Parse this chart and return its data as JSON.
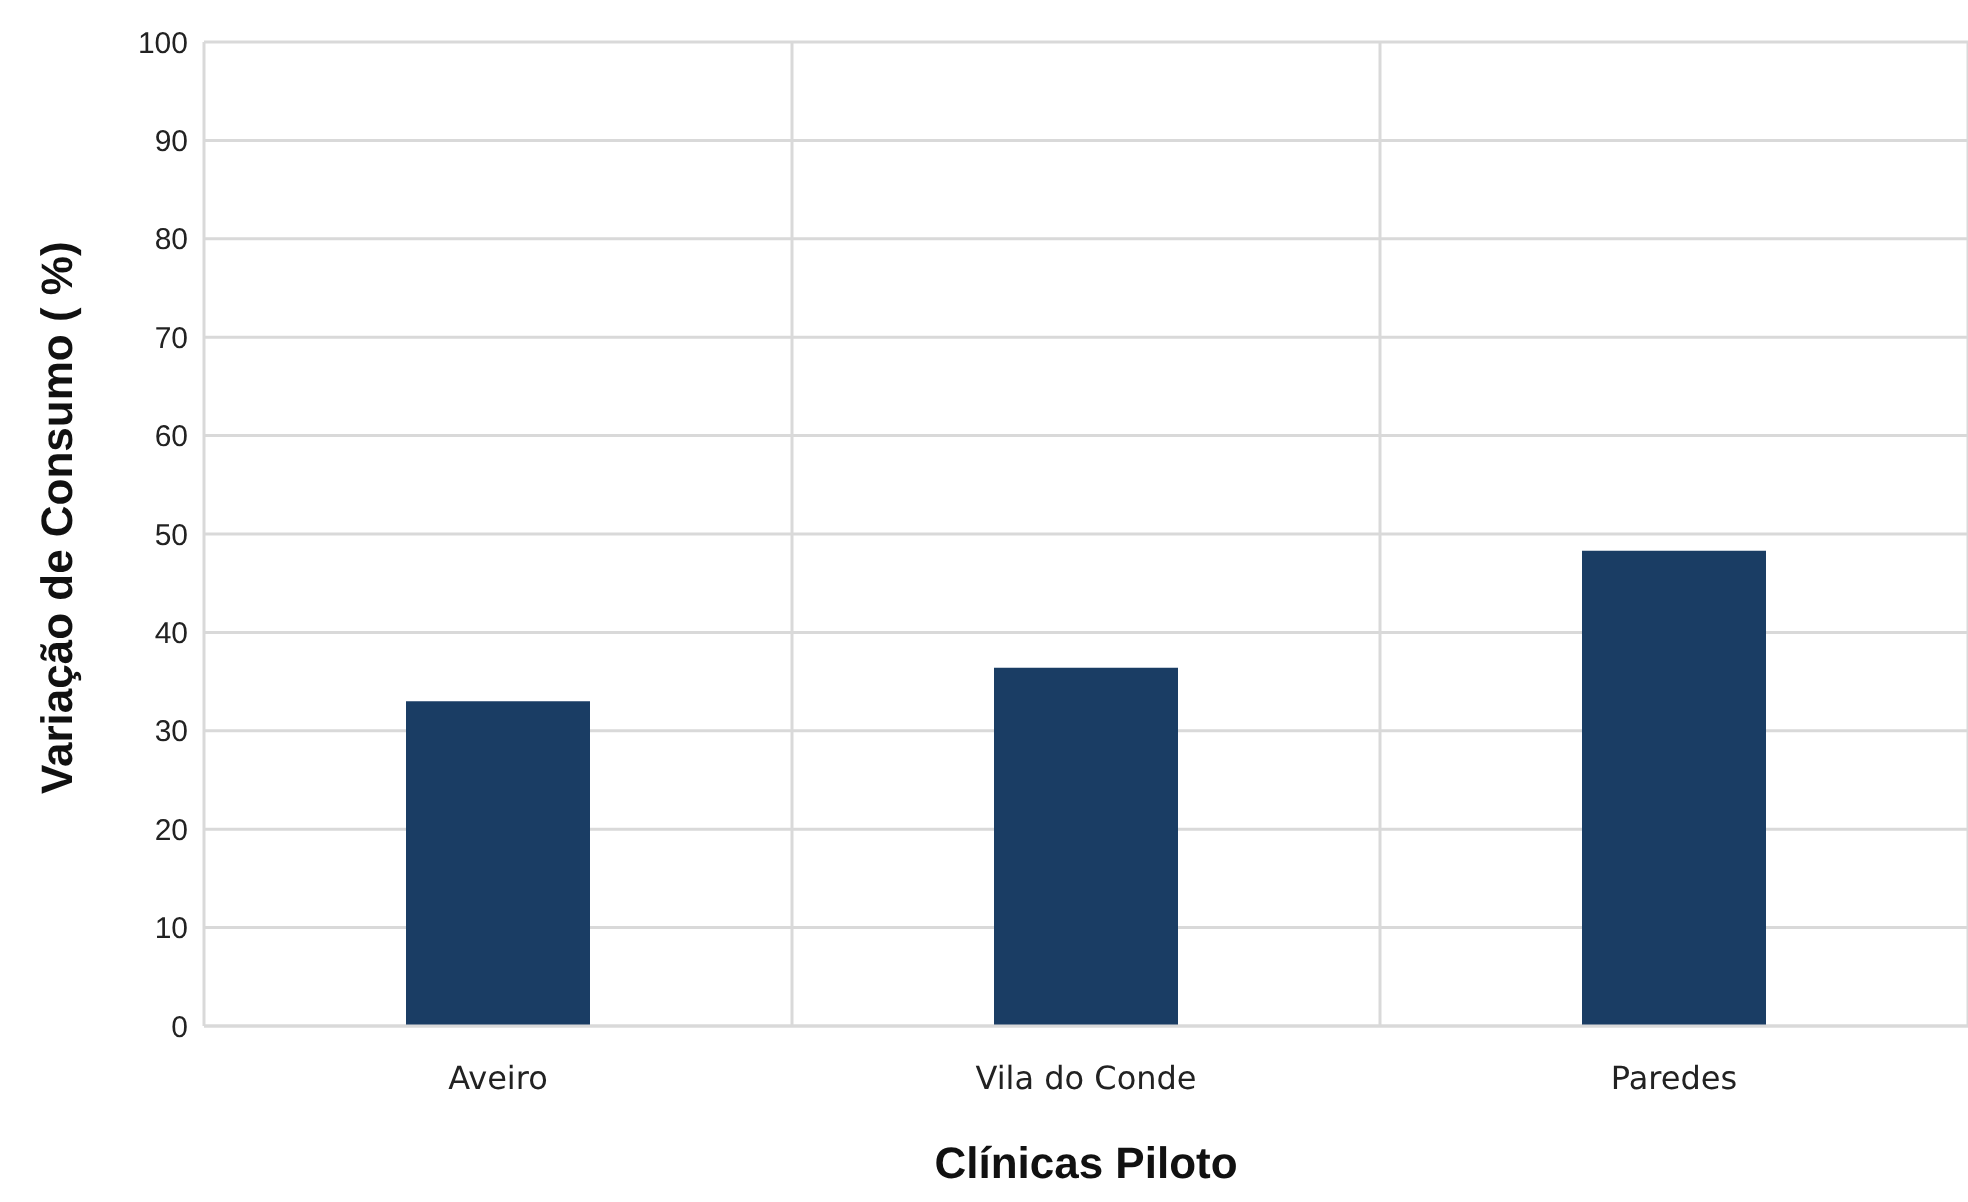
{
  "chart_data": {
    "type": "bar",
    "xlabel": "Clínicas Piloto",
    "ylabel": "Variação de Consumo ( %)",
    "categories": [
      "Aveiro",
      "Vila do Conde",
      "Paredes"
    ],
    "values": [
      33,
      36.4,
      48.3
    ],
    "color": "#1a3d64",
    "ylim": [
      0,
      100
    ],
    "yticks": [
      0,
      10,
      20,
      30,
      40,
      50,
      60,
      70,
      80,
      90,
      100
    ],
    "grid": true
  }
}
